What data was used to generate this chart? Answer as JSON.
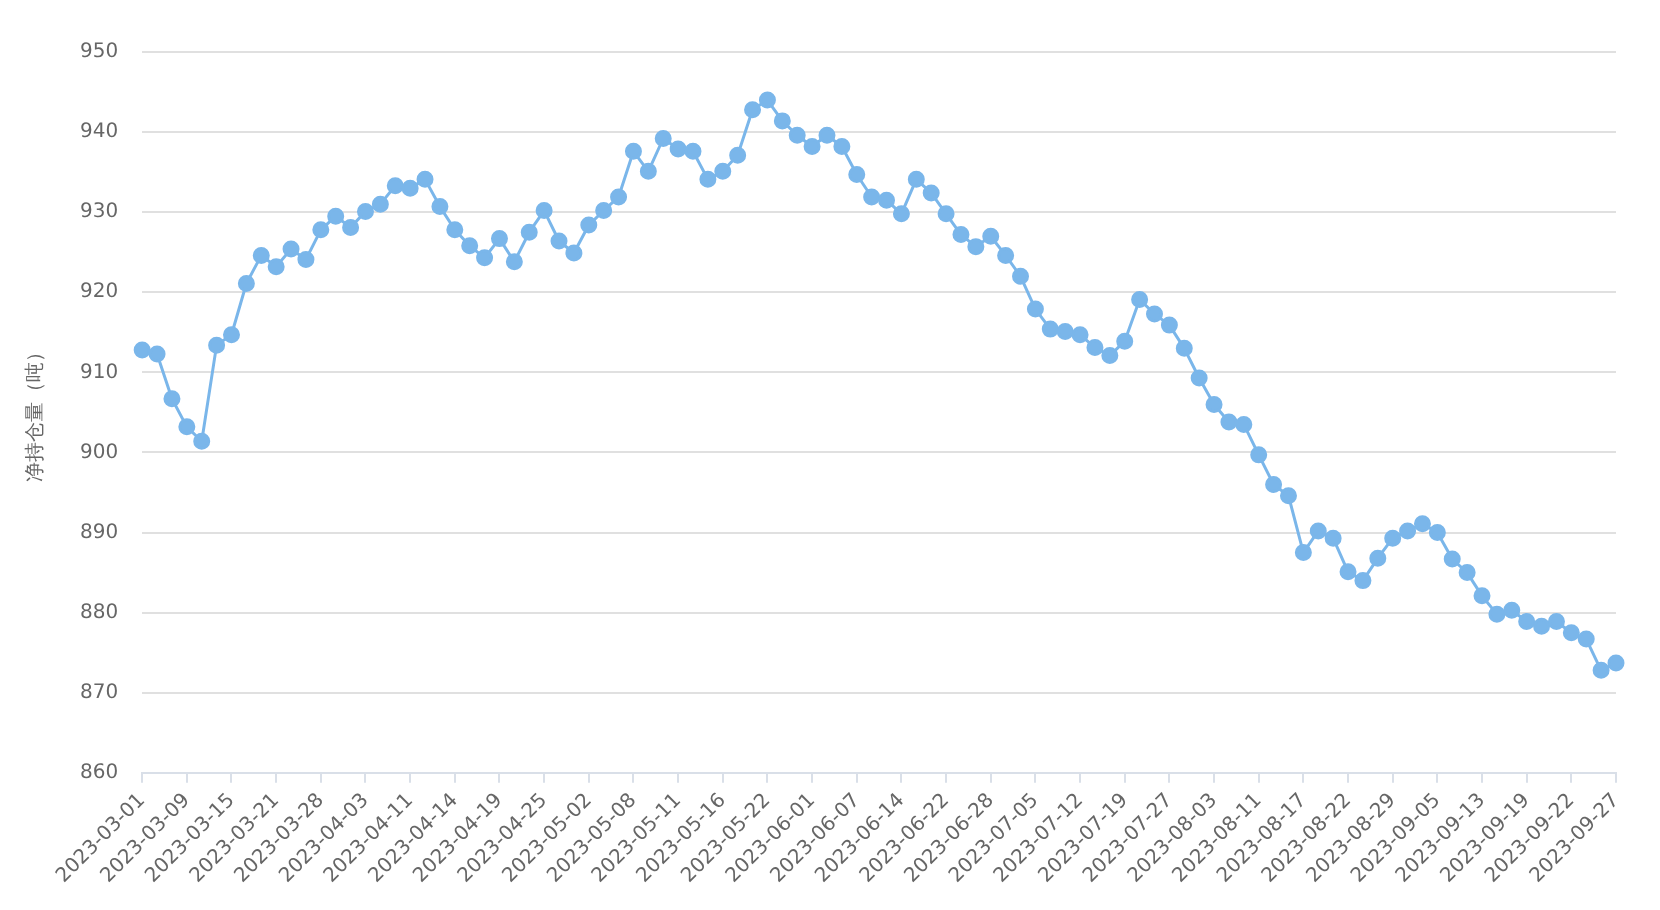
{
  "chart_data": {
    "type": "line",
    "ylabel": "净持仓量（吨）",
    "categories": [
      "2023-03-01",
      null,
      null,
      "2023-03-09",
      null,
      null,
      "2023-03-15",
      null,
      null,
      "2023-03-21",
      null,
      null,
      "2023-03-28",
      null,
      null,
      "2023-04-03",
      null,
      null,
      "2023-04-11",
      null,
      null,
      "2023-04-14",
      null,
      null,
      "2023-04-19",
      null,
      null,
      "2023-04-25",
      null,
      null,
      "2023-05-02",
      null,
      null,
      "2023-05-08",
      null,
      null,
      "2023-05-11",
      null,
      null,
      "2023-05-16",
      null,
      null,
      "2023-05-22",
      null,
      null,
      "2023-06-01",
      null,
      null,
      "2023-06-07",
      null,
      null,
      "2023-06-14",
      null,
      null,
      "2023-06-22",
      null,
      null,
      "2023-06-28",
      null,
      null,
      "2023-07-05",
      null,
      null,
      "2023-07-12",
      null,
      null,
      "2023-07-19",
      null,
      null,
      "2023-07-27",
      null,
      null,
      "2023-08-03",
      null,
      null,
      "2023-08-11",
      null,
      null,
      "2023-08-17",
      null,
      null,
      "2023-08-22",
      null,
      null,
      "2023-08-29",
      null,
      null,
      "2023-09-05",
      null,
      null,
      "2023-09-13",
      null,
      null,
      "2023-09-19",
      null,
      null,
      "2023-09-22",
      null,
      null,
      "2023-09-27"
    ],
    "series": [
      {
        "color": "#7ab6ea",
        "values": [
          912.8,
          912.3,
          906.7,
          903.2,
          901.4,
          913.4,
          914.7,
          921.1,
          924.6,
          923.2,
          925.4,
          924.1,
          927.8,
          929.5,
          928.1,
          930.1,
          931.0,
          933.3,
          933.0,
          934.1,
          930.7,
          927.8,
          925.8,
          924.3,
          926.7,
          923.8,
          927.5,
          930.2,
          926.4,
          924.9,
          928.4,
          930.2,
          931.9,
          937.6,
          935.1,
          939.2,
          937.9,
          937.6,
          934.1,
          935.1,
          937.1,
          942.8,
          944.0,
          941.4,
          939.6,
          938.2,
          939.6,
          938.2,
          934.7,
          931.9,
          931.5,
          929.8,
          934.1,
          932.4,
          929.8,
          927.2,
          925.7,
          927.0,
          924.6,
          922.0,
          917.9,
          915.4,
          915.1,
          914.7,
          913.1,
          912.1,
          913.9,
          919.1,
          917.3,
          915.9,
          913.0,
          909.3,
          906.0,
          903.8,
          903.5,
          899.7,
          896.0,
          894.6,
          887.5,
          890.2,
          889.3,
          885.1,
          884.0,
          886.8,
          889.3,
          890.2,
          891.1,
          890.0,
          886.7,
          885.0,
          882.1,
          879.8,
          880.3,
          878.9,
          878.3,
          878.9,
          877.5,
          876.7,
          872.8,
          873.7
        ]
      }
    ],
    "ylim": [
      860,
      950
    ],
    "yticks": [
      860,
      870,
      880,
      890,
      900,
      910,
      920,
      930,
      940,
      950
    ],
    "grid": "y",
    "marker": "circle",
    "line_style": "solid",
    "legend": false
  }
}
